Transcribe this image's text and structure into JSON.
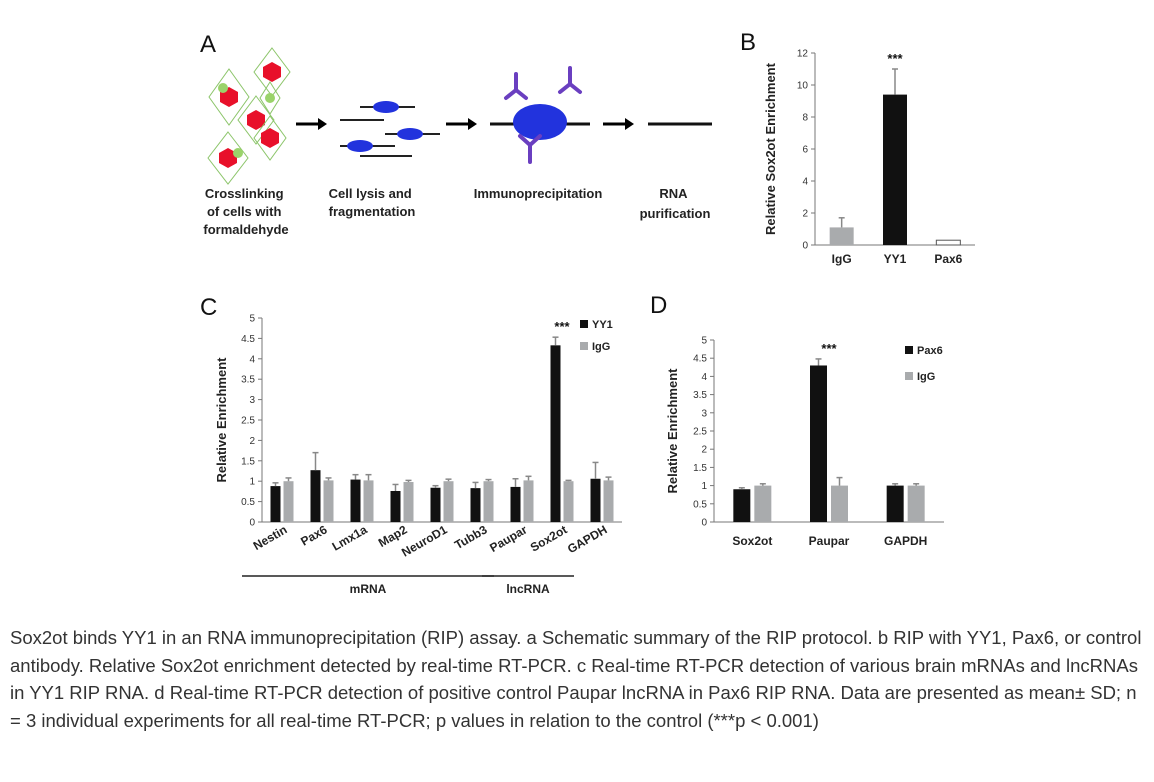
{
  "panel_labels": {
    "a": "A",
    "b": "B",
    "c": "C",
    "d": "D"
  },
  "schematic": {
    "steps": [
      [
        "Crosslinking",
        "of cells with",
        "formaldehyde"
      ],
      [
        "Cell lysis and",
        "fragmentation"
      ],
      [
        "Immunoprecipitation"
      ],
      [
        "RNA",
        "purification"
      ]
    ],
    "colors": {
      "cell": "#e8102a",
      "fragment": "#2233dd",
      "antibody": "#6a3fc0",
      "dot": "#9ad36a"
    }
  },
  "chart_data": [
    {
      "id": "B",
      "type": "bar",
      "categories": [
        "IgG",
        "YY1",
        "Pax6"
      ],
      "values": [
        1.1,
        9.4,
        0.3
      ],
      "errors": [
        0.6,
        1.6,
        0
      ],
      "colors": [
        "#a9abad",
        "#111111",
        "#ffffff"
      ],
      "ylabel": "Relative Sox2ot Enrichment",
      "ylim": [
        0,
        12
      ],
      "yticks": [
        "0",
        "2",
        "4",
        "6",
        "8",
        "10",
        "12"
      ],
      "annotations": [
        {
          "category": "YY1",
          "text": "***"
        }
      ]
    },
    {
      "id": "C",
      "type": "bar",
      "categories": [
        "Nestin",
        "Pax6",
        "Lmx1a",
        "Map2",
        "NeuroD1",
        "Tubb3",
        "Paupar",
        "Sox2ot",
        "GAPDH"
      ],
      "series": [
        {
          "name": "YY1",
          "color": "#111111",
          "values": [
            0.88,
            1.27,
            1.04,
            0.76,
            0.84,
            0.83,
            0.86,
            4.33,
            1.06
          ],
          "errors": [
            0.08,
            0.43,
            0.12,
            0.16,
            0.05,
            0.14,
            0.2,
            0.2,
            0.4
          ]
        },
        {
          "name": "IgG",
          "color": "#a9abad",
          "values": [
            1.0,
            1.02,
            1.02,
            0.98,
            1.0,
            1.0,
            1.02,
            1.0,
            1.02
          ],
          "errors": [
            0.08,
            0.06,
            0.14,
            0.04,
            0.05,
            0.04,
            0.1,
            0.02,
            0.08
          ]
        }
      ],
      "ylabel": "Relative Enrichment",
      "ylim": [
        0,
        5
      ],
      "yticks": [
        "0",
        "0.5",
        "1",
        "1.5",
        "2",
        "2.5",
        "3",
        "3.5",
        "4",
        "4.5",
        "5"
      ],
      "groups": [
        {
          "label": "mRNA",
          "from": 0,
          "to": 5
        },
        {
          "label": "lncRNA",
          "from": 6,
          "to": 7
        }
      ],
      "annotations": [
        {
          "category": "Sox2ot",
          "text": "***"
        }
      ],
      "legend_position": "top-right"
    },
    {
      "id": "D",
      "type": "bar",
      "categories": [
        "Sox2ot",
        "Paupar",
        "GAPDH"
      ],
      "series": [
        {
          "name": "Pax6",
          "color": "#111111",
          "values": [
            0.9,
            4.3,
            1.0
          ],
          "errors": [
            0.04,
            0.18,
            0.05
          ]
        },
        {
          "name": "IgG",
          "color": "#a9abad",
          "values": [
            1.0,
            1.0,
            1.0
          ],
          "errors": [
            0.05,
            0.22,
            0.05
          ]
        }
      ],
      "ylabel": "Relative Enrichment",
      "ylim": [
        0,
        5
      ],
      "yticks": [
        "0",
        "0.5",
        "1",
        "1.5",
        "2",
        "2.5",
        "3",
        "3.5",
        "4",
        "4.5",
        "5"
      ],
      "annotations": [
        {
          "category": "Paupar",
          "text": "***"
        }
      ],
      "legend_position": "top-right"
    }
  ],
  "caption": "Sox2ot binds YY1 in an RNA immunoprecipitation (RIP) assay. a Schematic summary of the RIP protocol. b RIP with YY1, Pax6, or control antibody. Relative Sox2ot enrichment detected by real-time RT-PCR. c Real-time RT-PCR detection of various brain mRNAs and lncRNAs in YY1 RIP RNA. d Real-time RT-PCR detection of positive control Paupar lncRNA in Pax6 RIP RNA. Data are presented as mean± SD; n = 3 individual experiments for all real-time RT-PCR; p values in relation to the control (***p < 0.001)"
}
